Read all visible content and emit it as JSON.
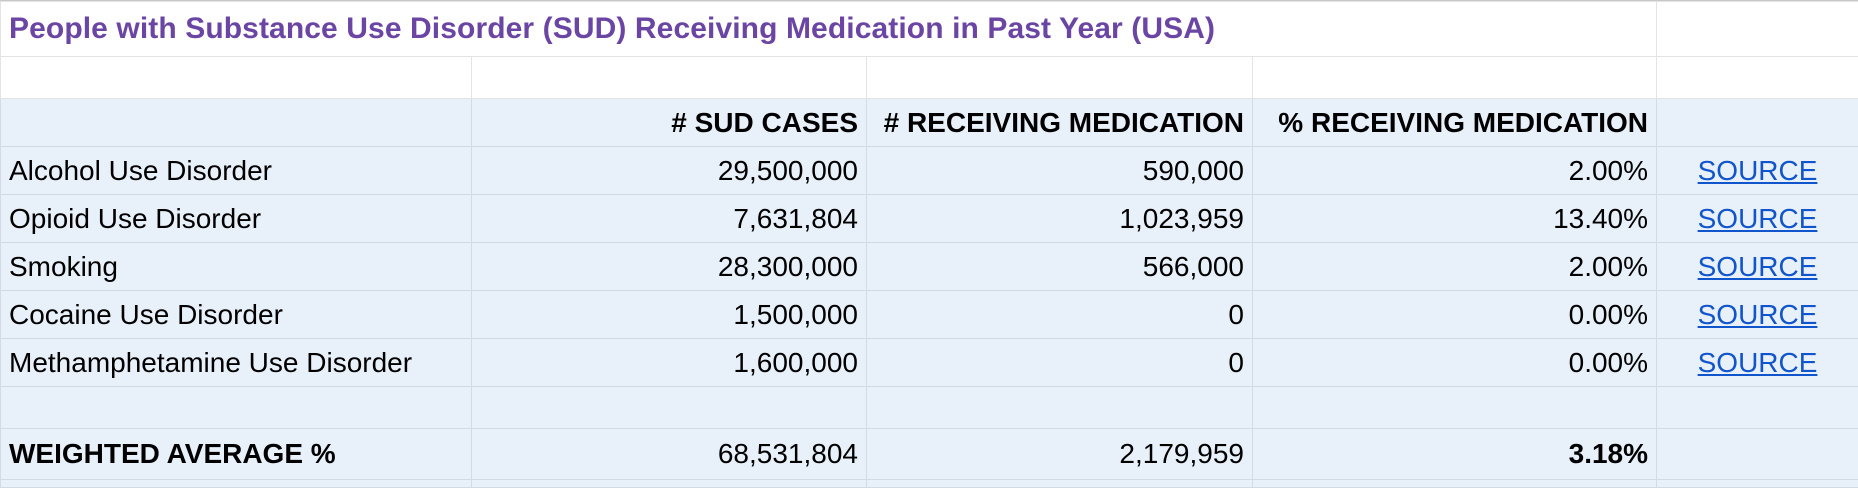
{
  "sheet": {
    "title": "People with Substance Use Disorder (SUD) Receiving Medication in Past Year (USA)",
    "headers": {
      "sud_cases": "# SUD CASES",
      "receiving": "# RECEIVING MEDICATION",
      "percent": "% RECEIVING MEDICATION"
    },
    "rows": [
      {
        "label": "Alcohol Use Disorder",
        "sud_cases": "29,500,000",
        "receiving": "590,000",
        "percent": "2.00%",
        "link": "SOURCE"
      },
      {
        "label": "Opioid Use Disorder",
        "sud_cases": "7,631,804",
        "receiving": "1,023,959",
        "percent": "13.40%",
        "link": "SOURCE"
      },
      {
        "label": "Smoking",
        "sud_cases": "28,300,000",
        "receiving": "566,000",
        "percent": "2.00%",
        "link": "SOURCE"
      },
      {
        "label": "Cocaine Use Disorder",
        "sud_cases": "1,500,000",
        "receiving": "0",
        "percent": "0.00%",
        "link": "SOURCE"
      },
      {
        "label": "Methamphetamine Use Disorder",
        "sud_cases": "1,600,000",
        "receiving": "0",
        "percent": "0.00%",
        "link": "SOURCE"
      }
    ],
    "total": {
      "label": "WEIGHTED AVERAGE %",
      "sud_cases": "68,531,804",
      "receiving": "2,179,959",
      "percent": "3.18%"
    }
  },
  "colors": {
    "title": "#6b45a4",
    "link": "#1155cc",
    "row_fill": "#e8f0fa"
  }
}
